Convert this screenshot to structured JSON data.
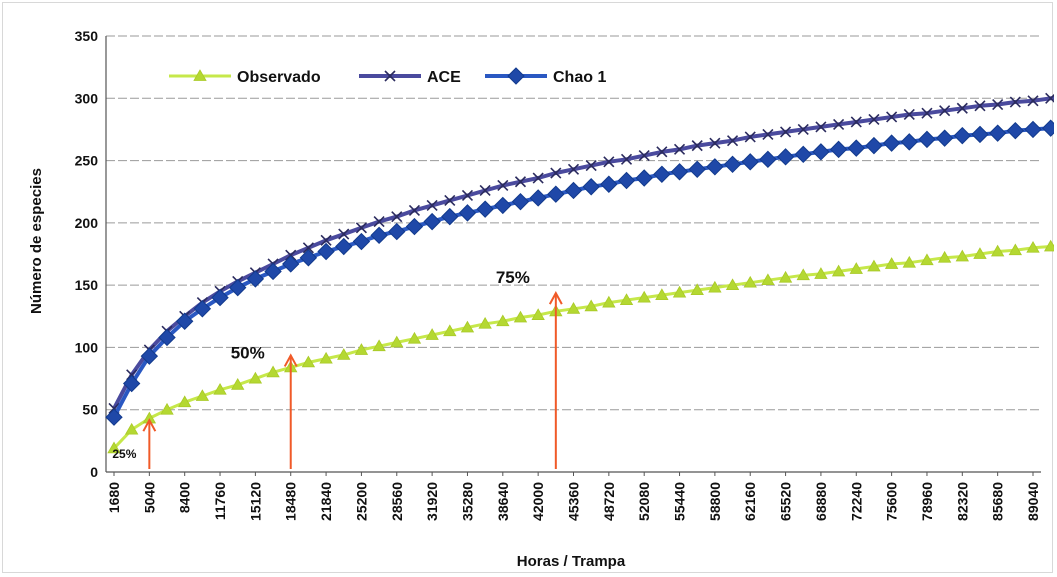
{
  "chart_data": {
    "type": "line",
    "title": "",
    "xlabel": "Horas / Trampa",
    "ylabel": "Número de especies",
    "ylim": [
      0,
      350
    ],
    "y_ticks": [
      0,
      50,
      100,
      150,
      200,
      250,
      300,
      350
    ],
    "x_ticks": [
      "1680",
      "5040",
      "8400",
      "11760",
      "15120",
      "18480",
      "21840",
      "25200",
      "28560",
      "31920",
      "35280",
      "38640",
      "42000",
      "45360",
      "48720",
      "52080",
      "55440",
      "58800",
      "62160",
      "65520",
      "68880",
      "72240",
      "75600",
      "78960",
      "82320",
      "85680",
      "89040"
    ],
    "x_step": 1680,
    "grid": true,
    "legend_position": "top-left",
    "series": [
      {
        "name": "Observado",
        "color": "#b4d832",
        "line_color": "#c6e84a",
        "marker": "triangle",
        "values": [
          19,
          34,
          43,
          50,
          56,
          61,
          66,
          70,
          75,
          80,
          84,
          88,
          91,
          94,
          98,
          101,
          104,
          107,
          110,
          113,
          116,
          119,
          121,
          124,
          126,
          129,
          131,
          133,
          136,
          138,
          140,
          142,
          144,
          146,
          148,
          150,
          152,
          154,
          156,
          158,
          159,
          161,
          163,
          165,
          167,
          168,
          170,
          172,
          173,
          175,
          177,
          178,
          180,
          181,
          183,
          184,
          186,
          187,
          189,
          190,
          192,
          193,
          195,
          196,
          198,
          199
        ]
      },
      {
        "name": "ACE",
        "color": "#3f3f8c",
        "line_color": "#4a4a9e",
        "marker": "x",
        "values": [
          51,
          78,
          98,
          113,
          125,
          136,
          145,
          153,
          160,
          167,
          174,
          180,
          186,
          191,
          196,
          201,
          205,
          210,
          214,
          218,
          222,
          226,
          230,
          233,
          236,
          240,
          243,
          246,
          249,
          251,
          254,
          257,
          259,
          262,
          264,
          266,
          269,
          271,
          273,
          275,
          277,
          279,
          281,
          283,
          285,
          287,
          288,
          290,
          292,
          294,
          295,
          297,
          298,
          300,
          301,
          303,
          304,
          306,
          307,
          309,
          310,
          312,
          313,
          314,
          316,
          317
        ]
      },
      {
        "name": "Chao 1",
        "color": "#1f48a8",
        "line_color": "#2a58c2",
        "marker": "diamond",
        "values": [
          44,
          71,
          93,
          108,
          121,
          131,
          140,
          148,
          155,
          161,
          167,
          172,
          177,
          181,
          185,
          190,
          193,
          197,
          201,
          205,
          208,
          211,
          214,
          217,
          220,
          223,
          226,
          229,
          231,
          234,
          236,
          239,
          241,
          243,
          245,
          247,
          249,
          251,
          253,
          255,
          257,
          259,
          260,
          262,
          264,
          265,
          267,
          268,
          270,
          271,
          272,
          274,
          275,
          276,
          277,
          278,
          279,
          280,
          281,
          282,
          282,
          283,
          283,
          284,
          284,
          283
        ]
      }
    ],
    "annotations": [
      {
        "label": "25%",
        "x": 5040,
        "y": 48
      },
      {
        "label": "50%",
        "x": 18480,
        "y": 100
      },
      {
        "label": "75%",
        "x": 43680,
        "y": 150
      }
    ],
    "annotation_color": "#f05a28"
  }
}
